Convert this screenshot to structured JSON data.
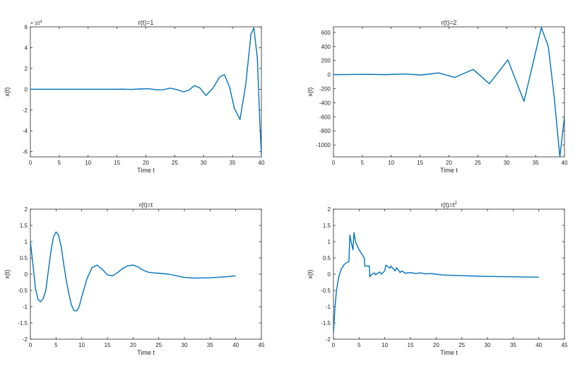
{
  "colors": {
    "line": "#0072BD",
    "axis": "#262626",
    "background": "#ffffff"
  },
  "chart_data": [
    {
      "type": "line",
      "title": "r(t)=1",
      "xlabel": "Time t",
      "ylabel": "x(t)",
      "xlim": [
        0,
        40
      ],
      "ylim": [
        -6.5,
        6
      ],
      "exponent_label": "× 10",
      "exponent_power": "4",
      "xticks": [
        0,
        5,
        10,
        15,
        20,
        25,
        30,
        35,
        40
      ],
      "xtick_labels": [
        "0",
        "5",
        "10",
        "15",
        "20",
        "25",
        "30",
        "35",
        "40"
      ],
      "yticks": [
        -6,
        -4,
        -2,
        0,
        2,
        4,
        6
      ],
      "ytick_labels": [
        "-6",
        "-4",
        "-2",
        "0",
        "2",
        "4",
        "6"
      ],
      "grid": false,
      "series": [
        {
          "x": [
            0,
            14,
            16,
            17.5,
            19,
            20.5,
            22,
            23,
            24.2,
            25.5,
            26.5,
            27.4,
            28.4,
            29.3,
            30.4,
            31.6,
            32.8,
            33.6,
            34.5,
            35.3,
            36.3,
            37.3,
            38.2,
            38.7,
            39.3,
            39.7,
            40
          ],
          "y": [
            0,
            0,
            0.01,
            -0.02,
            0.03,
            0.05,
            -0.06,
            -0.04,
            0.1,
            -0.05,
            -0.25,
            -0.1,
            0.35,
            0.15,
            -0.6,
            0.1,
            1.2,
            1.4,
            0.2,
            -1.8,
            -2.9,
            0.5,
            5.3,
            5.9,
            3.0,
            -2.8,
            -6.3
          ]
        }
      ]
    },
    {
      "type": "line",
      "title": "r(t)=2",
      "xlabel": "Time t",
      "ylabel": "x(t)",
      "xlim": [
        0,
        40
      ],
      "ylim": [
        -1170,
        680
      ],
      "xticks": [
        0,
        5,
        10,
        15,
        20,
        25,
        30,
        35,
        40
      ],
      "xtick_labels": [
        "0",
        "5",
        "10",
        "15",
        "20",
        "25",
        "30",
        "35",
        "40"
      ],
      "yticks": [
        -1000,
        -800,
        -600,
        -400,
        -200,
        0,
        200,
        400,
        600
      ],
      "ytick_labels": [
        "-1000",
        "-800",
        "-600",
        "-400",
        "-200",
        "0",
        "200",
        "400",
        "600"
      ],
      "grid": false,
      "series": [
        {
          "x": [
            0,
            3,
            6,
            9,
            12.2,
            15.2,
            18.2,
            21,
            24.2,
            27,
            30.2,
            33,
            36,
            37.2,
            38.2,
            39.2,
            40
          ],
          "y": [
            0,
            2,
            5,
            0,
            10,
            -5,
            25,
            -40,
            75,
            -130,
            210,
            -380,
            670,
            400,
            -300,
            -1170,
            -600
          ]
        }
      ]
    },
    {
      "type": "line",
      "title": "r(t)=t",
      "xlabel": "Time t",
      "ylabel": "x(t)",
      "xlim": [
        0,
        45
      ],
      "ylim": [
        -2,
        2
      ],
      "xticks": [
        0,
        5,
        10,
        15,
        20,
        25,
        30,
        35,
        40,
        45
      ],
      "xtick_labels": [
        "0",
        "5",
        "10",
        "15",
        "20",
        "25",
        "30",
        "35",
        "40",
        "45"
      ],
      "yticks": [
        -2,
        -1.5,
        -1,
        -0.5,
        0,
        0.5,
        1,
        1.5,
        2
      ],
      "ytick_labels": [
        "-2",
        "-1.5",
        "-1",
        "-0.5",
        "0",
        "0.5",
        "1",
        "1.5",
        "2"
      ],
      "grid": false,
      "series": [
        {
          "x": [
            0,
            0.5,
            1,
            1.5,
            2,
            2.5,
            3,
            3.5,
            4,
            4.5,
            5,
            5.5,
            6,
            6.5,
            7,
            7.5,
            8,
            8.5,
            9,
            9.5,
            10,
            11,
            12,
            13,
            14,
            15,
            16,
            17,
            18,
            19,
            20,
            21,
            22,
            23,
            24,
            25,
            27,
            30,
            32,
            35,
            38,
            40
          ],
          "y": [
            1.0,
            0.3,
            -0.45,
            -0.78,
            -0.85,
            -0.75,
            -0.5,
            0.1,
            0.7,
            1.15,
            1.3,
            1.2,
            0.85,
            0.3,
            -0.2,
            -0.6,
            -0.95,
            -1.12,
            -1.13,
            -1.0,
            -0.7,
            -0.15,
            0.2,
            0.28,
            0.15,
            -0.02,
            -0.05,
            0.05,
            0.18,
            0.26,
            0.28,
            0.22,
            0.12,
            0.06,
            0.04,
            0.03,
            0.0,
            -0.1,
            -0.12,
            -0.11,
            -0.08,
            -0.05
          ]
        }
      ]
    },
    {
      "type": "line",
      "title": "r(t)=t",
      "title_superscript": "2",
      "xlabel": "Time t",
      "ylabel": "x(t)",
      "xlim": [
        0,
        45
      ],
      "ylim": [
        -2,
        2
      ],
      "xticks": [
        0,
        5,
        10,
        15,
        20,
        25,
        30,
        35,
        40,
        45
      ],
      "xtick_labels": [
        "0",
        "5",
        "10",
        "15",
        "20",
        "25",
        "30",
        "35",
        "40",
        "45"
      ],
      "yticks": [
        -2,
        -1.5,
        -1,
        -0.5,
        0,
        0.5,
        1,
        1.5,
        2
      ],
      "ytick_labels": [
        "-2",
        "-1.5",
        "-1",
        "-0.5",
        "0",
        "0.5",
        "1",
        "1.5",
        "2"
      ],
      "grid": false,
      "series": [
        {
          "x": [
            0,
            0.3,
            0.6,
            1,
            1.5,
            2,
            2.5,
            3,
            3.2,
            3.5,
            3.8,
            4.0,
            4.3,
            5,
            6,
            6.1,
            7,
            7.1,
            7.5,
            8,
            8.2,
            9,
            9.3,
            10,
            10.2,
            11,
            11.2,
            12,
            12.3,
            13,
            13.3,
            14,
            15,
            16,
            17,
            18,
            19,
            20,
            21,
            22,
            24,
            26,
            28,
            30,
            35,
            40
          ],
          "y": [
            -1.8,
            -1.0,
            -0.5,
            -0.1,
            0.15,
            0.28,
            0.35,
            0.38,
            1.2,
            0.95,
            0.75,
            1.28,
            1.0,
            0.75,
            0.5,
            0.25,
            0.25,
            -0.08,
            0.0,
            0.04,
            -0.02,
            0.07,
            0.0,
            0.1,
            0.28,
            0.18,
            0.25,
            0.1,
            0.2,
            0.05,
            0.1,
            0.03,
            0.05,
            0.02,
            0.04,
            0.01,
            0.02,
            0.0,
            -0.02,
            -0.03,
            -0.04,
            -0.05,
            -0.06,
            -0.07,
            -0.08,
            -0.09
          ]
        }
      ]
    }
  ]
}
